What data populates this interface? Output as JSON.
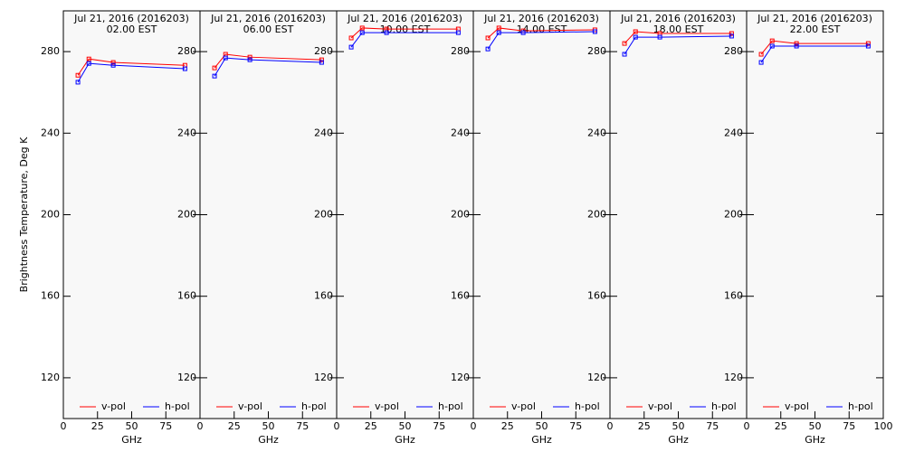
{
  "chart_data": [
    {
      "type": "line",
      "title": "Jul 21, 2016 (2016203)",
      "subtitle": "02.00 EST",
      "ylabel": "Brightness Temperature, Deg K",
      "xlabel": "GHz",
      "x": [
        10.65,
        18.7,
        36.5,
        89
      ],
      "xlim": [
        0,
        100
      ],
      "ylim": [
        100,
        300
      ],
      "xticks": [
        0,
        25,
        50,
        75
      ],
      "yticks": [
        120,
        160,
        200,
        240,
        280
      ],
      "series": [
        {
          "name": "v-pol",
          "color": "#ff0000",
          "values": [
            268.4,
            276.4,
            274.7,
            273.3
          ]
        },
        {
          "name": "h-pol",
          "color": "#0000ff",
          "values": [
            265,
            274.2,
            273.3,
            271.6
          ]
        }
      ]
    },
    {
      "type": "line",
      "title": "Jul 21, 2016 (2016203)",
      "subtitle": "06.00 EST",
      "xlabel": "GHz",
      "x": [
        10.65,
        18.7,
        36.5,
        89
      ],
      "xlim": [
        0,
        100
      ],
      "ylim": [
        100,
        300
      ],
      "xticks": [
        0,
        25,
        50,
        75
      ],
      "yticks": [
        120,
        160,
        200,
        240,
        280
      ],
      "series": [
        {
          "name": "v-pol",
          "color": "#ff0000",
          "values": [
            272,
            278.7,
            277.3,
            276
          ]
        },
        {
          "name": "h-pol",
          "color": "#0000ff",
          "values": [
            268,
            276.9,
            276,
            274.7
          ]
        }
      ]
    },
    {
      "type": "line",
      "title": "Jul 21, 2016 (2016203)",
      "subtitle": "10.00 EST",
      "xlabel": "GHz",
      "x": [
        10.65,
        18.7,
        36.5,
        89
      ],
      "xlim": [
        0,
        100
      ],
      "ylim": [
        100,
        300
      ],
      "xticks": [
        0,
        25,
        50,
        75
      ],
      "yticks": [
        120,
        160,
        200,
        240,
        280
      ],
      "series": [
        {
          "name": "v-pol",
          "color": "#ff0000",
          "values": [
            286.7,
            291.6,
            291.1,
            291.1
          ]
        },
        {
          "name": "h-pol",
          "color": "#0000ff",
          "values": [
            282.2,
            289.3,
            289.3,
            289.3
          ]
        }
      ]
    },
    {
      "type": "line",
      "title": "Jul 21, 2016 (2016203)",
      "subtitle": "14.00 EST",
      "xlabel": "GHz",
      "x": [
        10.65,
        18.7,
        36.5,
        89
      ],
      "xlim": [
        0,
        100
      ],
      "ylim": [
        100,
        300
      ],
      "xticks": [
        0,
        25,
        50,
        75
      ],
      "yticks": [
        120,
        160,
        200,
        240,
        280
      ],
      "series": [
        {
          "name": "v-pol",
          "color": "#ff0000",
          "values": [
            286.7,
            291.6,
            290.2,
            290.7
          ]
        },
        {
          "name": "h-pol",
          "color": "#0000ff",
          "values": [
            281.3,
            289.3,
            289.3,
            289.8
          ]
        }
      ]
    },
    {
      "type": "line",
      "title": "Jul 21, 2016 (2016203)",
      "subtitle": "18.00 EST",
      "xlabel": "GHz",
      "x": [
        10.65,
        18.7,
        36.5,
        89
      ],
      "xlim": [
        0,
        100
      ],
      "ylim": [
        100,
        300
      ],
      "xticks": [
        0,
        25,
        50,
        75
      ],
      "yticks": [
        120,
        160,
        200,
        240,
        280
      ],
      "series": [
        {
          "name": "v-pol",
          "color": "#ff0000",
          "values": [
            284,
            289.8,
            288.9,
            288.9
          ]
        },
        {
          "name": "h-pol",
          "color": "#0000ff",
          "values": [
            278.7,
            287.1,
            287.1,
            287.6
          ]
        }
      ]
    },
    {
      "type": "line",
      "title": "Jul 21, 2016 (2016203)",
      "subtitle": "22.00 EST",
      "xlabel": "GHz",
      "x": [
        10.65,
        18.7,
        36.5,
        89
      ],
      "xlim": [
        0,
        100
      ],
      "ylim": [
        100,
        300
      ],
      "xticks": [
        0,
        25,
        50,
        75,
        100
      ],
      "yticks": [
        120,
        160,
        200,
        240,
        280
      ],
      "series": [
        {
          "name": "v-pol",
          "color": "#ff0000",
          "values": [
            278.7,
            285.3,
            284,
            284
          ]
        },
        {
          "name": "h-pol",
          "color": "#0000ff",
          "values": [
            274.7,
            282.7,
            282.7,
            282.7
          ]
        }
      ]
    }
  ]
}
